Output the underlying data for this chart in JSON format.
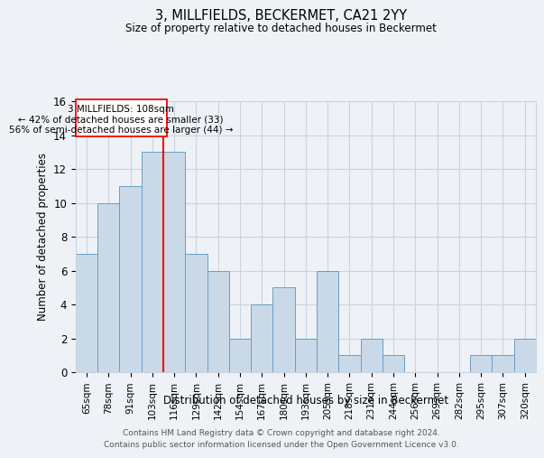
{
  "title": "3, MILLFIELDS, BECKERMET, CA21 2YY",
  "subtitle": "Size of property relative to detached houses in Beckermet",
  "xlabel": "Distribution of detached houses by size in Beckermet",
  "ylabel": "Number of detached properties",
  "categories": [
    "65sqm",
    "78sqm",
    "91sqm",
    "103sqm",
    "116sqm",
    "129sqm",
    "142sqm",
    "154sqm",
    "167sqm",
    "180sqm",
    "193sqm",
    "205sqm",
    "218sqm",
    "231sqm",
    "244sqm",
    "256sqm",
    "269sqm",
    "282sqm",
    "295sqm",
    "307sqm",
    "320sqm"
  ],
  "values": [
    7,
    10,
    11,
    13,
    13,
    7,
    6,
    2,
    4,
    5,
    2,
    6,
    1,
    2,
    1,
    0,
    0,
    0,
    1,
    1,
    2
  ],
  "bar_color": "#c9d9e8",
  "bar_edge_color": "#6a9fc0",
  "red_line_index": 3.5,
  "red_line_label": "3 MILLFIELDS: 108sqm",
  "annotation_line1": "← 42% of detached houses are smaller (33)",
  "annotation_line2": "56% of semi-detached houses are larger (44) →",
  "ylim": [
    0,
    16
  ],
  "yticks": [
    0,
    2,
    4,
    6,
    8,
    10,
    12,
    14,
    16
  ],
  "footer_line1": "Contains HM Land Registry data © Crown copyright and database right 2024.",
  "footer_line2": "Contains public sector information licensed under the Open Government Licence v3.0.",
  "bg_color": "#eef2f7",
  "plot_bg_color": "#eef2f7",
  "grid_color": "#c8d4e0"
}
